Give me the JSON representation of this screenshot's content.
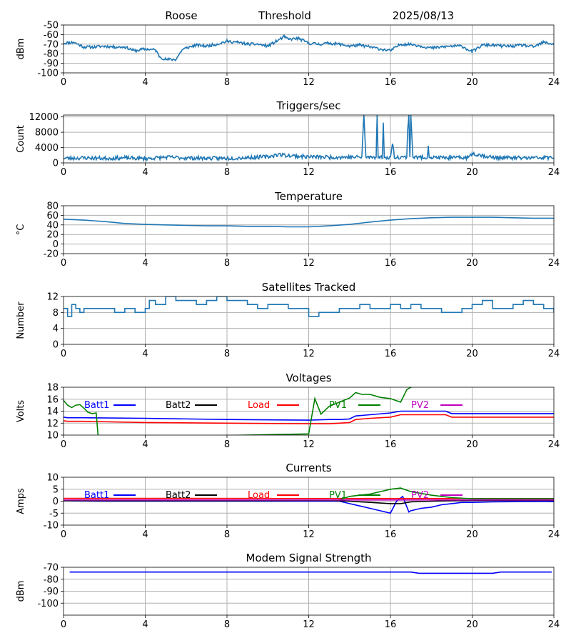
{
  "header": {
    "station": "Roose",
    "mode": "Threshold",
    "date": "2025/08/13"
  },
  "colors": {
    "trace": "#1f77b4",
    "grid": "#b0b0b0",
    "batt1": "#0000ff",
    "batt2": "#000000",
    "load": "#ff0000",
    "pv1": "#008000",
    "pv2": "#bf00bf"
  },
  "chart_data": [
    {
      "type": "line",
      "title": "",
      "xlabel": "",
      "ylabel": "dBm",
      "xlim": [
        0,
        24
      ],
      "ylim": [
        -100,
        -50
      ],
      "xticks": [
        "0",
        "4",
        "8",
        "12",
        "16",
        "20",
        "24"
      ],
      "yticks": [
        "-50",
        "-60",
        "-70",
        "-80",
        "-90",
        "-100"
      ],
      "grid": true,
      "noise": 1.5,
      "noise_seed": 11,
      "series": [
        {
          "color": "#1f77b4",
          "x": [
            0,
            0.5,
            1,
            1.5,
            2,
            2.5,
            3,
            3.5,
            4,
            4.5,
            4.7,
            5,
            5.5,
            5.8,
            6,
            6.5,
            7,
            7.5,
            8,
            8.5,
            9,
            9.5,
            10,
            10.5,
            10.8,
            11,
            11.5,
            12,
            12.5,
            13,
            13.5,
            14,
            14.5,
            15,
            15.5,
            16,
            16.5,
            17,
            17.5,
            18,
            18.5,
            19,
            19.5,
            20,
            20.5,
            21,
            21.5,
            22,
            22.5,
            23,
            23.5,
            24
          ],
          "y": [
            -69,
            -68,
            -73,
            -73,
            -72,
            -73,
            -73,
            -77,
            -75,
            -76,
            -83,
            -86,
            -86,
            -76,
            -74,
            -71,
            -72,
            -70,
            -67,
            -68,
            -70,
            -70,
            -72,
            -66,
            -62,
            -65,
            -64,
            -69,
            -70,
            -69,
            -70,
            -72,
            -71,
            -73,
            -75,
            -77,
            -70,
            -70,
            -72,
            -74,
            -73,
            -72,
            -72,
            -78,
            -71,
            -71,
            -72,
            -72,
            -71,
            -73,
            -68,
            -70
          ]
        }
      ]
    },
    {
      "type": "line",
      "title": "Triggers/sec",
      "xlabel": "",
      "ylabel": "Count",
      "xlim": [
        0,
        24
      ],
      "ylim": [
        0,
        12500
      ],
      "xticks": [
        "0",
        "4",
        "8",
        "12",
        "16",
        "20",
        "24"
      ],
      "yticks": [
        "0",
        "4000",
        "8000",
        "12000"
      ],
      "grid": true,
      "noise": 500,
      "noise_seed": 23,
      "series": [
        {
          "color": "#1f77b4",
          "x": [
            0,
            1,
            2,
            3,
            4,
            5,
            6,
            7,
            8,
            9,
            10,
            10.5,
            11,
            12,
            13,
            14,
            14.6,
            14.7,
            14.8,
            15,
            15.3,
            15.35,
            15.4,
            15.6,
            15.65,
            15.7,
            16,
            16.1,
            16.2,
            16.5,
            16.8,
            16.85,
            16.9,
            16.95,
            17,
            17.1,
            17.2,
            17.5,
            17.8,
            17.85,
            17.9,
            18,
            19,
            19.8,
            20,
            21,
            22,
            23,
            24
          ],
          "y": [
            1200,
            1300,
            1200,
            1300,
            1100,
            1500,
            1300,
            1200,
            1200,
            1400,
            1600,
            2200,
            1900,
            1600,
            1500,
            1500,
            1500,
            12500,
            1500,
            1500,
            1500,
            12500,
            1500,
            1400,
            10500,
            1400,
            1500,
            5000,
            1500,
            1500,
            1500,
            9000,
            12500,
            1500,
            12500,
            1500,
            1500,
            1400,
            1400,
            4500,
            1400,
            1400,
            1300,
            1400,
            2500,
            1400,
            1300,
            1300,
            1400
          ]
        }
      ]
    },
    {
      "type": "line",
      "title": "Temperature",
      "xlabel": "",
      "ylabel": "°C",
      "xlim": [
        0,
        24
      ],
      "ylim": [
        -20,
        80
      ],
      "xticks": [
        "0",
        "4",
        "8",
        "12",
        "16",
        "20",
        "24"
      ],
      "yticks": [
        "-20",
        "0",
        "20",
        "40",
        "60",
        "80"
      ],
      "grid": true,
      "series": [
        {
          "color": "#1f77b4",
          "x": [
            0,
            1,
            2,
            3,
            4,
            5,
            6,
            7,
            8,
            9,
            10,
            11,
            12,
            13,
            14,
            15,
            16,
            17,
            18,
            19,
            20,
            21,
            22,
            23,
            24
          ],
          "y": [
            52,
            50,
            47,
            43,
            41,
            40,
            39,
            38,
            38,
            37,
            37,
            36,
            36,
            38,
            41,
            46,
            50,
            53,
            55,
            56,
            56,
            56,
            55,
            54,
            54
          ]
        }
      ]
    },
    {
      "type": "line",
      "title": "Satellites Tracked",
      "xlabel": "",
      "ylabel": "Number",
      "xlim": [
        0,
        24
      ],
      "ylim": [
        0,
        12
      ],
      "xticks": [
        "0",
        "4",
        "8",
        "12",
        "16",
        "20",
        "24"
      ],
      "yticks": [
        "0",
        "4",
        "8",
        "12"
      ],
      "grid": true,
      "step": true,
      "series": [
        {
          "color": "#1f77b4",
          "x": [
            0,
            0.2,
            0.4,
            0.6,
            0.8,
            1,
            1.5,
            2,
            2.5,
            3,
            3.5,
            4,
            4.2,
            4.5,
            5,
            5.5,
            6,
            6.5,
            7,
            7.5,
            8,
            8.5,
            9,
            9.5,
            10,
            10.5,
            11,
            11.5,
            12,
            12.5,
            13,
            13.5,
            14,
            14.5,
            15,
            15.5,
            16,
            16.5,
            17,
            17.5,
            18,
            18.5,
            19,
            19.5,
            20,
            20.5,
            21,
            21.5,
            22,
            22.5,
            23,
            23.5,
            24
          ],
          "y": [
            9,
            7,
            10,
            9,
            8,
            9,
            9,
            9,
            8,
            9,
            8,
            9,
            11,
            10,
            12,
            11,
            11,
            10,
            11,
            12,
            11,
            11,
            10,
            9,
            10,
            10,
            9,
            9,
            7,
            8,
            8,
            9,
            9,
            10,
            9,
            9,
            10,
            9,
            10,
            9,
            9,
            8,
            8,
            9,
            10,
            11,
            9,
            9,
            10,
            11,
            10,
            9,
            8
          ]
        }
      ]
    },
    {
      "type": "line",
      "title": "Voltages",
      "xlabel": "",
      "ylabel": "Volts",
      "xlim": [
        0,
        24
      ],
      "ylim": [
        10,
        18
      ],
      "xticks": [
        "0",
        "4",
        "8",
        "12",
        "16",
        "20",
        "24"
      ],
      "yticks": [
        "10",
        "12",
        "14",
        "16",
        "18"
      ],
      "grid": true,
      "legend": "top",
      "series": [
        {
          "name": "Batt1",
          "color": "#0000ff",
          "x": [
            0,
            0.2,
            1,
            4,
            8,
            12,
            13,
            13.5,
            14,
            14.3,
            15,
            16,
            16.5,
            17,
            18,
            18.7,
            19,
            20,
            21,
            22,
            23,
            24
          ],
          "y": [
            13.0,
            12.9,
            12.9,
            12.8,
            12.6,
            12.5,
            12.6,
            12.6,
            12.7,
            13.2,
            13.4,
            13.7,
            14.0,
            14.0,
            14.0,
            14.0,
            13.6,
            13.6,
            13.6,
            13.6,
            13.6,
            13.6
          ]
        },
        {
          "name": "Batt2",
          "color": "#000000",
          "x": [],
          "y": []
        },
        {
          "name": "Load",
          "color": "#ff0000",
          "x": [
            0,
            0.2,
            1,
            4,
            8,
            12,
            13,
            13.5,
            14,
            14.3,
            15,
            16,
            16.5,
            17,
            18,
            18.7,
            19,
            20,
            21,
            22,
            23,
            24
          ],
          "y": [
            12.4,
            12.3,
            12.3,
            12.1,
            12.0,
            11.9,
            11.9,
            12.0,
            12.1,
            12.6,
            12.8,
            13.0,
            13.4,
            13.4,
            13.4,
            13.4,
            13.0,
            13.0,
            13.0,
            13.0,
            13.0,
            13.0
          ]
        },
        {
          "name": "PV1",
          "color": "#008000",
          "x": [
            0,
            0.2,
            0.4,
            0.6,
            0.8,
            1,
            1.2,
            1.4,
            1.6,
            1.7,
            12,
            12.3,
            12.6,
            13,
            13.5,
            14,
            14.3,
            14.6,
            15,
            15.5,
            16,
            16.5,
            16.8,
            17,
            17.3
          ],
          "y": [
            15.8,
            15.0,
            14.6,
            15.0,
            15.1,
            14.5,
            13.8,
            13.6,
            13.7,
            9.5,
            10.2,
            16.1,
            13.5,
            14.8,
            15.5,
            16.2,
            17.1,
            16.8,
            16.8,
            16.3,
            16.1,
            15.5,
            17.6,
            18.0,
            18.2
          ]
        },
        {
          "name": "PV2",
          "color": "#bf00bf",
          "x": [],
          "y": []
        }
      ]
    },
    {
      "type": "line",
      "title": "Currents",
      "xlabel": "",
      "ylabel": "Amps",
      "xlim": [
        0,
        24
      ],
      "ylim": [
        -10,
        10
      ],
      "xticks": [
        "0",
        "4",
        "8",
        "12",
        "16",
        "20",
        "24"
      ],
      "yticks": [
        "-10",
        "-5",
        "0",
        "5",
        "10"
      ],
      "grid": true,
      "legend": "top",
      "series": [
        {
          "name": "Batt1",
          "color": "#0000ff",
          "x": [
            0,
            2,
            8,
            12,
            13.5,
            14,
            14.5,
            15,
            15.5,
            16,
            16.3,
            16.6,
            16.9,
            17,
            17.5,
            18,
            18.5,
            19,
            19.5,
            20,
            21,
            22,
            23,
            24
          ],
          "y": [
            0.2,
            0,
            0,
            0,
            0,
            -1,
            -2,
            -3,
            -4,
            -5,
            0,
            2,
            -4.5,
            -4,
            -3,
            -2.5,
            -1.5,
            -1,
            -0.5,
            -0.5,
            -0.3,
            -0.2,
            -0.1,
            -0.2
          ]
        },
        {
          "name": "Batt2",
          "color": "#000000",
          "x": [
            0,
            8,
            13,
            14,
            15,
            16,
            16.5,
            17,
            18,
            19,
            20,
            24
          ],
          "y": [
            0.2,
            0.2,
            0.3,
            0,
            -0.5,
            -1,
            -1,
            -0.3,
            0,
            0.2,
            0.3,
            0.3
          ]
        },
        {
          "name": "Load",
          "color": "#ff0000",
          "x": [
            0,
            24
          ],
          "y": [
            1.2,
            1.1
          ]
        },
        {
          "name": "PV1",
          "color": "#008000",
          "x": [
            0,
            13.5,
            14,
            15,
            16,
            16.5,
            17,
            18,
            19,
            20,
            24
          ],
          "y": [
            0.5,
            0.5,
            2,
            3,
            5,
            5.5,
            4,
            2.5,
            1.5,
            1,
            1
          ]
        },
        {
          "name": "PV2",
          "color": "#bf00bf",
          "x": [
            0,
            24
          ],
          "y": [
            0.5,
            0.5
          ]
        }
      ]
    },
    {
      "type": "line",
      "title": "Modem Signal Strength",
      "xlabel": "",
      "ylabel": "dBm",
      "xlim": [
        0,
        24
      ],
      "ylim": [
        -110,
        -70
      ],
      "xticks": [
        "0",
        "4",
        "8",
        "12",
        "16",
        "20",
        "24"
      ],
      "yticks": [
        "-70",
        "-80",
        "-90",
        "-100"
      ],
      "grid": true,
      "series": [
        {
          "color": "#0000ff",
          "x": [
            0.3,
            17,
            17.4,
            21,
            21.4,
            23.9
          ],
          "y": [
            -74,
            -74,
            -75,
            -75,
            -74,
            -74
          ]
        }
      ]
    }
  ]
}
